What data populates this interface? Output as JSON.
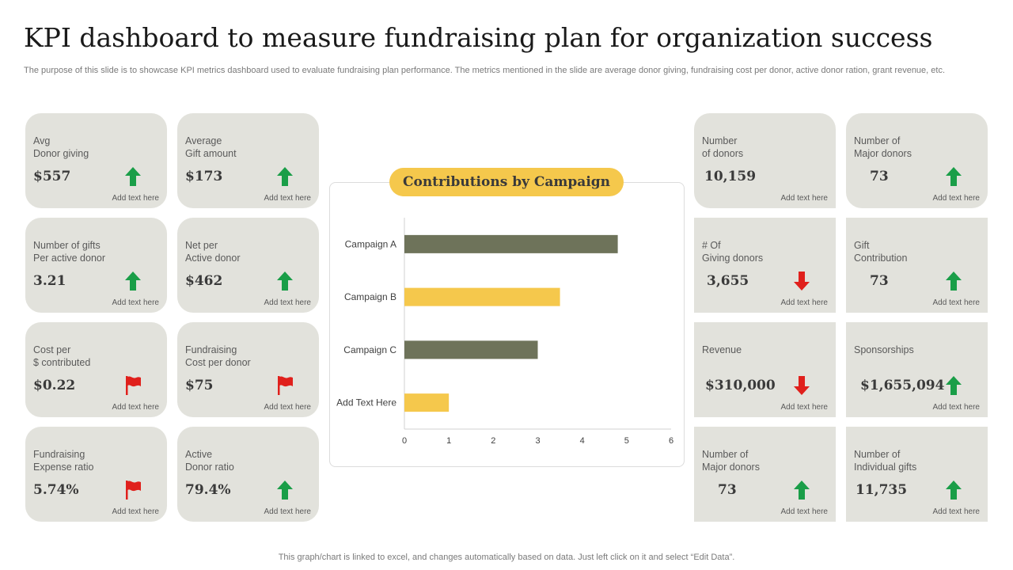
{
  "header": {
    "title": "KPI dashboard to measure fundraising plan for organization success",
    "subtitle": "The purpose of this slide is to showcase KPI metrics dashboard used to evaluate fundraising plan performance. The metrics mentioned in the slide are average donor giving, fundraising cost per donor, active donor ration, grant revenue, etc."
  },
  "colors": {
    "card_bg": "#e2e2dc",
    "up": "#1a9e48",
    "down": "#e0201c",
    "flag": "#e0201c",
    "bar_dark": "#6e735a",
    "bar_yellow": "#f5c84c"
  },
  "note_text": "Add text here",
  "cards": [
    {
      "label": "Avg\nDonor giving",
      "value": "$557",
      "icon": "up-arrow-icon"
    },
    {
      "label": "Average\nGift amount",
      "value": "$173",
      "icon": "up-arrow-icon"
    },
    {
      "label": "Number of gifts\nPer active donor",
      "value": "3.21",
      "icon": "up-arrow-icon"
    },
    {
      "label": "Net per\nActive donor",
      "value": "$462",
      "icon": "up-arrow-icon"
    },
    {
      "label": "Cost per\n$ contributed",
      "value": "$0.22",
      "icon": "flag-icon"
    },
    {
      "label": "Fundraising\nCost per donor",
      "value": "$75",
      "icon": "flag-icon"
    },
    {
      "label": "Fundraising\nExpense ratio",
      "value": "5.74%",
      "icon": "flag-icon"
    },
    {
      "label": "Active\nDonor ratio",
      "value": "79.4%",
      "icon": "up-arrow-icon"
    },
    {
      "label": "Number\nof donors",
      "value": "10,159",
      "icon": "none"
    },
    {
      "label": "Number of\nMajor donors",
      "value": "73",
      "icon": "up-arrow-icon"
    },
    {
      "label": "# Of\nGiving donors",
      "value": "3,655",
      "icon": "down-arrow-icon"
    },
    {
      "label": "Gift\nContribution",
      "value": "73",
      "icon": "up-arrow-icon"
    },
    {
      "label": "Revenue",
      "value": "$310,000",
      "icon": "down-arrow-icon"
    },
    {
      "label": "Sponsorships",
      "value": "$1,655,094",
      "icon": "up-arrow-icon"
    },
    {
      "label": "Number of\nMajor donors",
      "value": "73",
      "icon": "up-arrow-icon"
    },
    {
      "label": "Number of\nIndividual gifts",
      "value": "11,735",
      "icon": "up-arrow-icon"
    }
  ],
  "chart_data": {
    "type": "bar",
    "orientation": "horizontal",
    "title": "Contributions by Campaign",
    "categories": [
      "Campaign A",
      "Campaign B",
      "Campaign C",
      "Add Text Here"
    ],
    "values": [
      4.8,
      3.5,
      3.0,
      1.0
    ],
    "bar_colors": [
      "#6e735a",
      "#f5c84c",
      "#6e735a",
      "#f5c84c"
    ],
    "xlim": [
      0,
      6
    ],
    "xticks": [
      0,
      1,
      2,
      3,
      4,
      5,
      6
    ],
    "xlabel": "",
    "ylabel": "",
    "grid": false,
    "legend": "none"
  },
  "footer": "This graph/chart is linked to excel, and changes automatically based on data. Just left click on it and select “Edit Data”."
}
